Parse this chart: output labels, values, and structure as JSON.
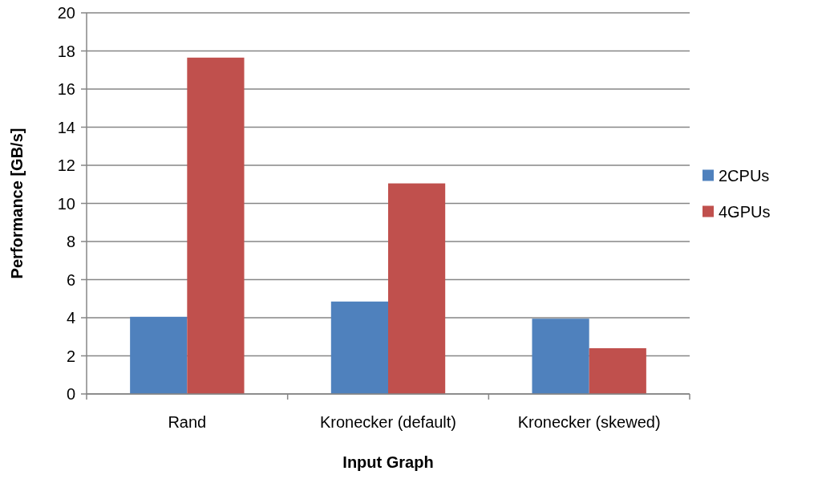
{
  "chart_data": {
    "type": "bar",
    "xlabel": "Input Graph",
    "ylabel": "Performance [GB/s]",
    "categories": [
      "Rand",
      "Kronecker (default)",
      "Kronecker (skewed)"
    ],
    "series": [
      {
        "name": "2CPUs",
        "color": "#4f81bd",
        "values": [
          4.05,
          4.85,
          3.95
        ]
      },
      {
        "name": "4GPUs",
        "color": "#c0504d",
        "values": [
          17.65,
          11.05,
          2.4
        ]
      }
    ],
    "ylim": [
      0,
      20
    ],
    "yticks": [
      0,
      2,
      4,
      6,
      8,
      10,
      12,
      14,
      16,
      18,
      20
    ],
    "grid": "y",
    "legend": "right"
  }
}
